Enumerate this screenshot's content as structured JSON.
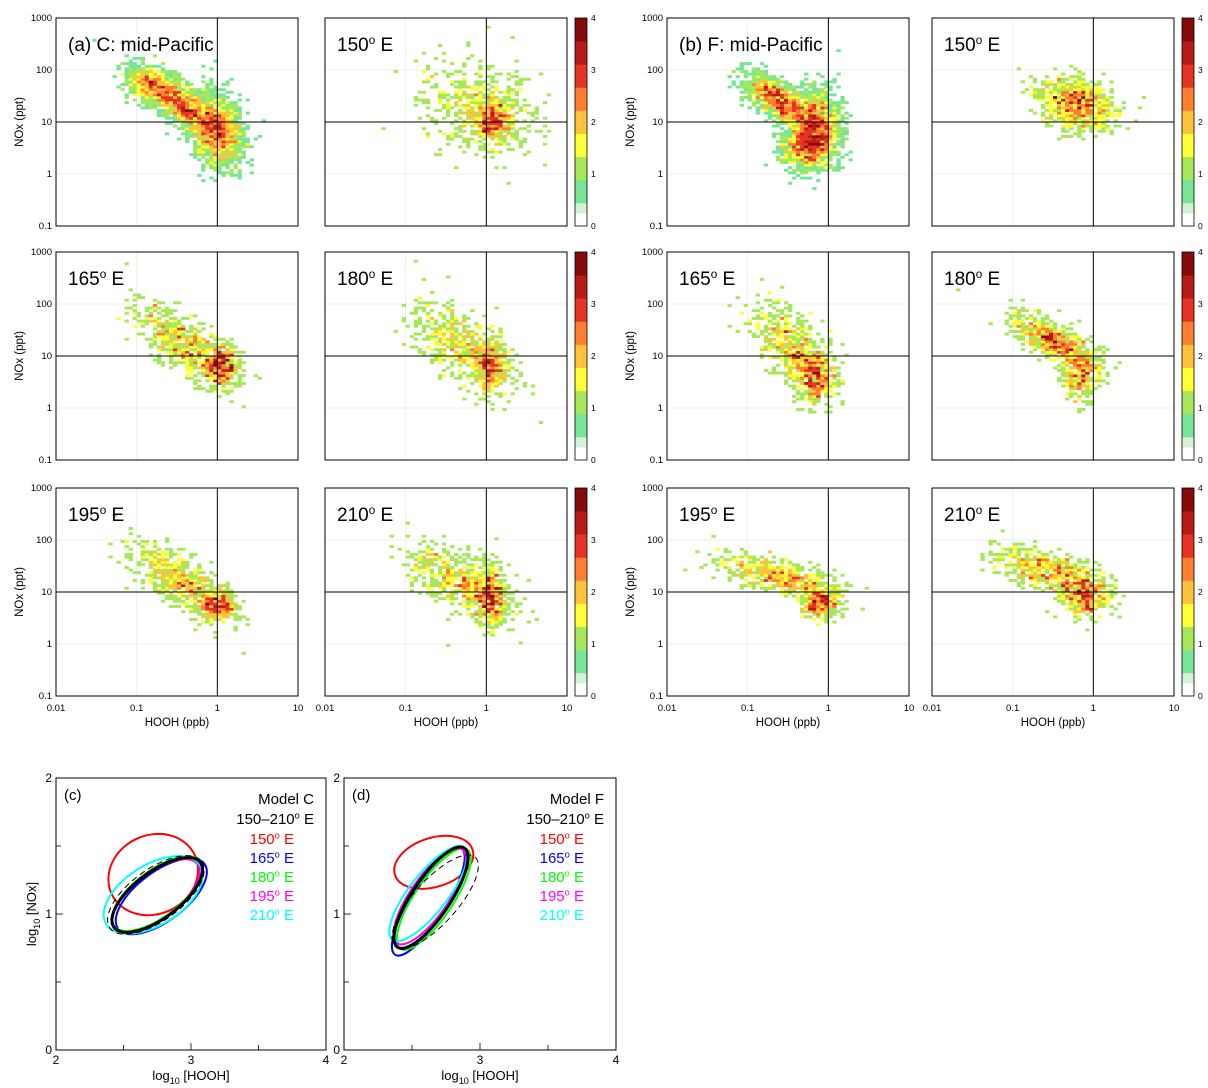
{
  "colors": {
    "colormap": [
      "#ffffff",
      "#d4f2da",
      "#77e596",
      "#a6e85a",
      "#ffff35",
      "#ffc23a",
      "#ff7d2e",
      "#e63324",
      "#b81a16",
      "#860a0a"
    ],
    "series": {
      "150": "#ff0000",
      "165": "#0000ff",
      "180": "#00ff00",
      "195": "#ff00ff",
      "210": "#00ffff",
      "mean": "#000000"
    }
  },
  "chart_data": [
    {
      "type": "heatmap",
      "group": "scatter-grid",
      "panels": [
        {
          "title": "(a) C: mid-Pacific",
          "xlabel": "",
          "ylabel": "NOx (ppt)",
          "region": "C",
          "lon": "mean"
        },
        {
          "title": "150",
          "title_sup": "o",
          "title_suffix": " E",
          "xlabel": "",
          "ylabel": "",
          "region": "C",
          "lon": 150
        },
        {
          "title": "165",
          "title_sup": "o",
          "title_suffix": " E",
          "xlabel": "",
          "ylabel": "NOx (ppt)",
          "region": "C",
          "lon": 165
        },
        {
          "title": "180",
          "title_sup": "o",
          "title_suffix": " E",
          "xlabel": "",
          "ylabel": "",
          "region": "C",
          "lon": 180
        },
        {
          "title": "195",
          "title_sup": "o",
          "title_suffix": " E",
          "xlabel": "HOOH (ppb)",
          "ylabel": "NOx (ppt)",
          "region": "C",
          "lon": 195
        },
        {
          "title": "210",
          "title_sup": "o",
          "title_suffix": " E",
          "xlabel": "HOOH (ppb)",
          "ylabel": "",
          "region": "C",
          "lon": 210
        },
        {
          "title": "(b) F: mid-Pacific",
          "xlabel": "",
          "ylabel": "NOx (ppt)",
          "region": "F",
          "lon": "mean"
        },
        {
          "title": "150",
          "title_sup": "o",
          "title_suffix": " E",
          "xlabel": "",
          "ylabel": "",
          "region": "F",
          "lon": 150
        },
        {
          "title": "165",
          "title_sup": "o",
          "title_suffix": " E",
          "xlabel": "",
          "ylabel": "NOx (ppt)",
          "region": "F",
          "lon": 165
        },
        {
          "title": "180",
          "title_sup": "o",
          "title_suffix": " E",
          "xlabel": "",
          "ylabel": "",
          "region": "F",
          "lon": 180
        },
        {
          "title": "195",
          "title_sup": "o",
          "title_suffix": " E",
          "xlabel": "HOOH (ppb)",
          "ylabel": "NOx (ppt)",
          "region": "F",
          "lon": 195
        },
        {
          "title": "210",
          "title_sup": "o",
          "title_suffix": " E",
          "xlabel": "HOOH (ppb)",
          "ylabel": "",
          "region": "F",
          "lon": 210
        }
      ],
      "x_scale": "log",
      "y_scale": "log",
      "xlim": [
        0.01,
        10
      ],
      "ylim": [
        0.1,
        1000
      ],
      "x_ticks": [
        "0.01",
        "0.1",
        "1",
        "10"
      ],
      "y_ticks": [
        "0.1",
        "1",
        "10",
        "100",
        "1000"
      ],
      "reference_lines": {
        "x": 1,
        "y": 10
      },
      "colorbar": {
        "range": [
          0,
          4
        ],
        "ticks": [
          "0",
          "1",
          "2",
          "3",
          "4"
        ]
      },
      "grid": true
    },
    {
      "type": "line",
      "title": "(c)",
      "xlabel": "log10 [HOOH]",
      "xlabel_prefix": "log",
      "xlabel_sub": "10",
      "xlabel_suffix": " [HOOH]",
      "ylabel": "log10 [NOx]",
      "ylabel_prefix": "log",
      "ylabel_sub": "10",
      "ylabel_suffix": " [NOx]",
      "xlim": [
        2,
        4
      ],
      "ylim": [
        0,
        2
      ],
      "x_ticks": [
        "2",
        "3",
        "4"
      ],
      "y_ticks": [
        "0",
        "1",
        "2"
      ],
      "legend_title": "Model C",
      "legend_range": "150–210",
      "legend_range_sup": "o",
      "legend_range_suffix": " E",
      "legend_position": "top-right",
      "series": [
        {
          "name": "150",
          "color": "#ff0000",
          "cx": 2.72,
          "cy": 1.29,
          "rx": 0.34,
          "ry": 0.29,
          "angle": -25,
          "width": 2
        },
        {
          "name": "165",
          "color": "#0000ff",
          "cx": 2.78,
          "cy": 1.13,
          "rx": 0.4,
          "ry": 0.18,
          "angle": -37,
          "width": 2
        },
        {
          "name": "180",
          "color": "#00ff00",
          "cx": 2.75,
          "cy": 1.15,
          "rx": 0.4,
          "ry": 0.17,
          "angle": -37,
          "width": 2
        },
        {
          "name": "195",
          "color": "#ff00ff",
          "cx": 2.74,
          "cy": 1.13,
          "rx": 0.39,
          "ry": 0.17,
          "angle": -38,
          "width": 2
        },
        {
          "name": "210",
          "color": "#00ffff",
          "cx": 2.72,
          "cy": 1.14,
          "rx": 0.41,
          "ry": 0.22,
          "angle": -32,
          "width": 2
        },
        {
          "name": "150–210 E",
          "color": "#000000",
          "cx": 2.75,
          "cy": 1.14,
          "rx": 0.4,
          "ry": 0.17,
          "angle": -37,
          "width": 3
        },
        {
          "name": "",
          "color": "#000000",
          "cx": 2.74,
          "cy": 1.14,
          "rx": 0.42,
          "ry": 0.19,
          "angle": -36,
          "width": 1,
          "dashed": true
        }
      ]
    },
    {
      "type": "line",
      "title": "(d)",
      "xlabel": "log10 [HOOH]",
      "xlabel_prefix": "log",
      "xlabel_sub": "10",
      "xlabel_suffix": " [HOOH]",
      "ylabel": "",
      "xlim": [
        2,
        4
      ],
      "ylim": [
        0,
        2
      ],
      "x_ticks": [
        "2",
        "3",
        "4"
      ],
      "y_ticks": [
        "0",
        "1",
        "2"
      ],
      "legend_title": "Model F",
      "legend_range": "150–210",
      "legend_range_sup": "o",
      "legend_range_suffix": " E",
      "legend_position": "top-right",
      "series": [
        {
          "name": "150",
          "color": "#ff0000",
          "cx": 2.66,
          "cy": 1.38,
          "rx": 0.3,
          "ry": 0.18,
          "angle": -18,
          "width": 2
        },
        {
          "name": "165",
          "color": "#0000ff",
          "cx": 2.62,
          "cy": 1.09,
          "rx": 0.46,
          "ry": 0.13,
          "angle": -58,
          "width": 2
        },
        {
          "name": "180",
          "color": "#00ff00",
          "cx": 2.66,
          "cy": 1.11,
          "rx": 0.44,
          "ry": 0.14,
          "angle": -56,
          "width": 2
        },
        {
          "name": "195",
          "color": "#ff00ff",
          "cx": 2.63,
          "cy": 1.13,
          "rx": 0.42,
          "ry": 0.14,
          "angle": -55,
          "width": 2
        },
        {
          "name": "210",
          "color": "#00ffff",
          "cx": 2.62,
          "cy": 1.15,
          "rx": 0.43,
          "ry": 0.14,
          "angle": -52,
          "width": 2
        },
        {
          "name": "150–210 E",
          "color": "#000000",
          "cx": 2.64,
          "cy": 1.12,
          "rx": 0.44,
          "ry": 0.14,
          "angle": -56,
          "width": 3
        },
        {
          "name": "",
          "color": "#000000",
          "cx": 2.67,
          "cy": 1.09,
          "rx": 0.44,
          "ry": 0.16,
          "angle": -48,
          "width": 1,
          "dashed": true
        }
      ]
    }
  ]
}
